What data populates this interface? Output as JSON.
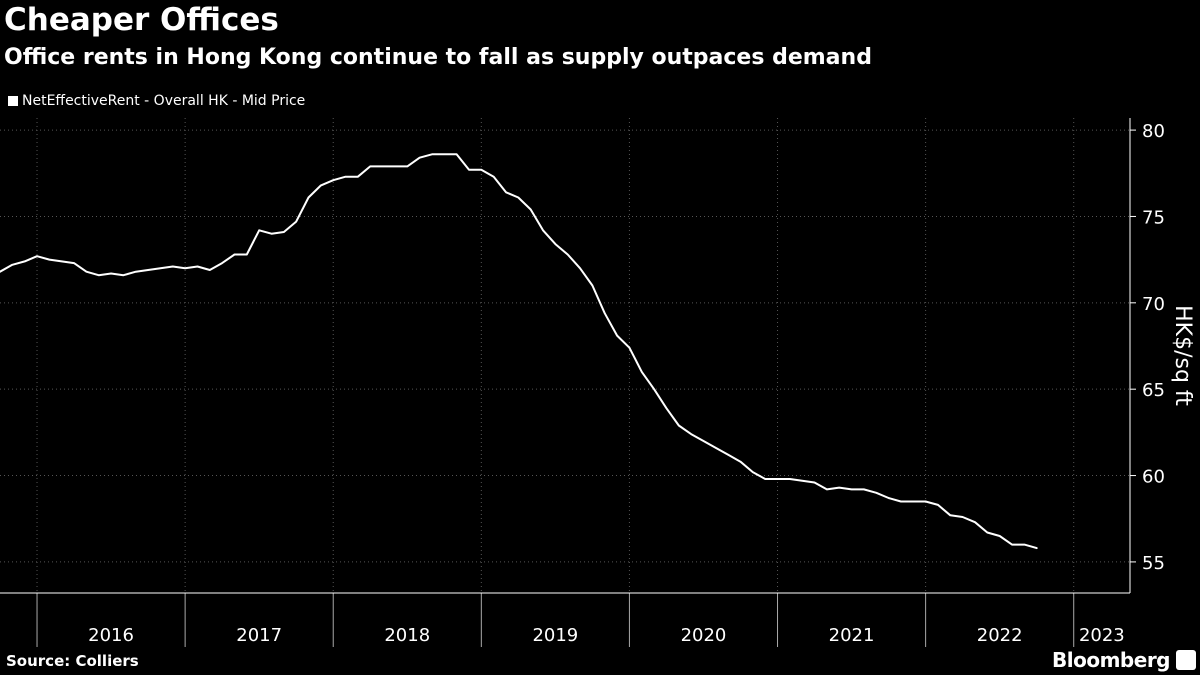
{
  "title": "Cheaper Offices",
  "subtitle": "Office rents in Hong Kong continue to fall as supply outpaces demand",
  "source": "Source: Colliers",
  "brand": "Bloomberg",
  "colors": {
    "background": "#000000",
    "line": "#ffffff",
    "grid": "#555555",
    "text": "#ffffff"
  },
  "chart_data": {
    "type": "line",
    "ylabel": "HK$/sq ft",
    "ylim": [
      53.2,
      80.7
    ],
    "yticks": [
      55,
      60,
      65,
      70,
      75,
      80
    ],
    "xlim": [
      2015.75,
      2023.38
    ],
    "x_year_ticks": [
      2016,
      2017,
      2018,
      2019,
      2020,
      2021,
      2022,
      2023
    ],
    "x_year_labels": [
      "2016",
      "2017",
      "2018",
      "2019",
      "2020",
      "2021",
      "2022",
      "2023"
    ],
    "grid": true,
    "legend_position": "top-left",
    "series": [
      {
        "name": "NetEffectiveRent - Overall HK - Mid Price",
        "start_year": 2015,
        "start_month": 10,
        "values": [
          71.8,
          72.2,
          72.4,
          72.7,
          72.5,
          72.4,
          72.3,
          71.8,
          71.6,
          71.7,
          71.6,
          71.8,
          71.9,
          72.0,
          72.1,
          72.0,
          72.1,
          71.9,
          72.3,
          72.8,
          72.8,
          74.2,
          74.0,
          74.1,
          74.7,
          76.1,
          76.8,
          77.1,
          77.3,
          77.3,
          77.9,
          77.9,
          77.9,
          77.9,
          78.4,
          78.6,
          78.6,
          78.6,
          77.7,
          77.7,
          77.3,
          76.4,
          76.1,
          75.4,
          74.2,
          73.4,
          72.8,
          72.0,
          71.0,
          69.4,
          68.1,
          67.4,
          66.0,
          65.0,
          63.9,
          62.9,
          62.4,
          62.0,
          61.6,
          61.2,
          60.8,
          60.2,
          59.8,
          59.8,
          59.8,
          59.7,
          59.6,
          59.2,
          59.3,
          59.2,
          59.2,
          59.0,
          58.7,
          58.5,
          58.5,
          58.5,
          58.3,
          57.7,
          57.6,
          57.3,
          56.7,
          56.5,
          56.0,
          56.0,
          55.8
        ]
      }
    ]
  }
}
